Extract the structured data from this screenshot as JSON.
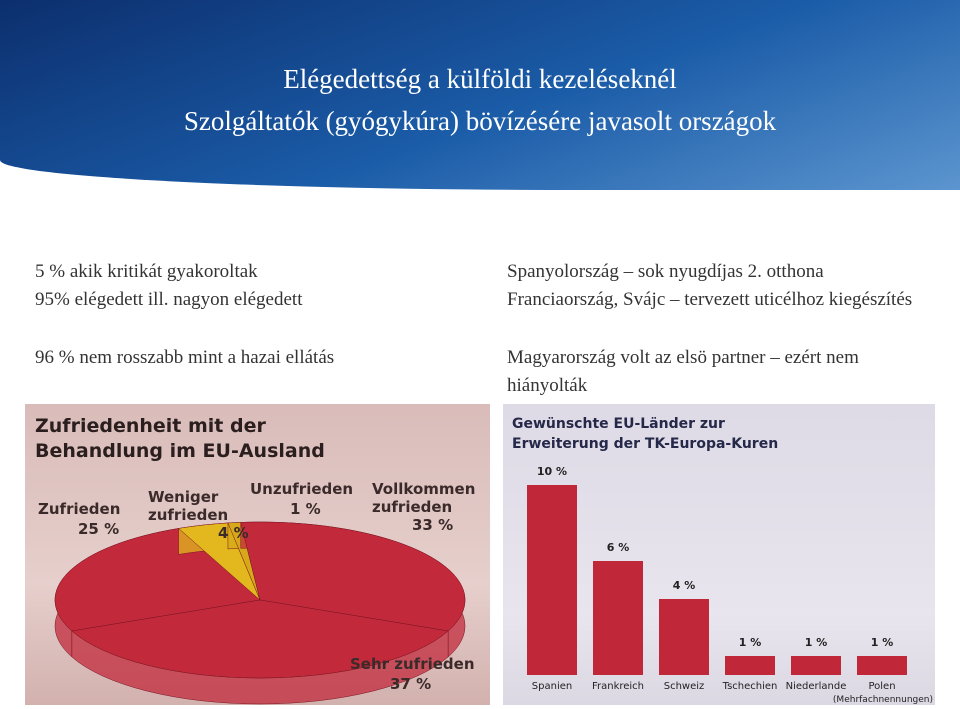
{
  "slide": {
    "title": "Elégedettség a külföldi kezeléseknél",
    "subtitle": "Szolgáltatók (gyógykúra) bövízésére javasolt országok",
    "left_points": [
      "5 % akik kritikát gyakoroltak",
      "95% elégedett ill. nagyon elégedett",
      "96 % nem rosszabb mint a hazai ellátás"
    ],
    "right_points": [
      "Spanyolország – sok nyugdíjas 2. otthona",
      "Franciaország, Svájc – tervezett uticélhoz kiegészítés",
      "Magyarország volt az elsö partner – ezért nem hiányolták"
    ]
  },
  "chart_data": [
    {
      "type": "pie",
      "title": "Zufriedenheit mit der Behandlung im EU-Ausland",
      "categories": [
        "Zufrieden",
        "Weniger zufrieden",
        "Unzufrieden",
        "Vollkommen zufrieden",
        "Sehr zufrieden"
      ],
      "values": [
        25,
        4,
        1,
        33,
        37
      ],
      "value_labels": [
        "25 %",
        "4 %",
        "1 %",
        "33 %",
        "37 %"
      ],
      "colors": [
        "#c22a3c",
        "#e2b81e",
        "#d6a81a",
        "#c22a3c",
        "#c22a3c"
      ]
    },
    {
      "type": "bar",
      "title": "Gewünschte EU-Länder zur Erweiterung der TK-Europa-Kuren",
      "categories": [
        "Spanien",
        "Frankreich",
        "Schweiz",
        "Tschechien",
        "Niederlande",
        "Polen"
      ],
      "values": [
        10,
        6,
        4,
        1,
        1,
        1
      ],
      "value_labels": [
        "10 %",
        "6 %",
        "4 %",
        "1 %",
        "1 %",
        "1 %"
      ],
      "color": "#c0283a",
      "note": "(Mehrfachnennungen)"
    }
  ]
}
